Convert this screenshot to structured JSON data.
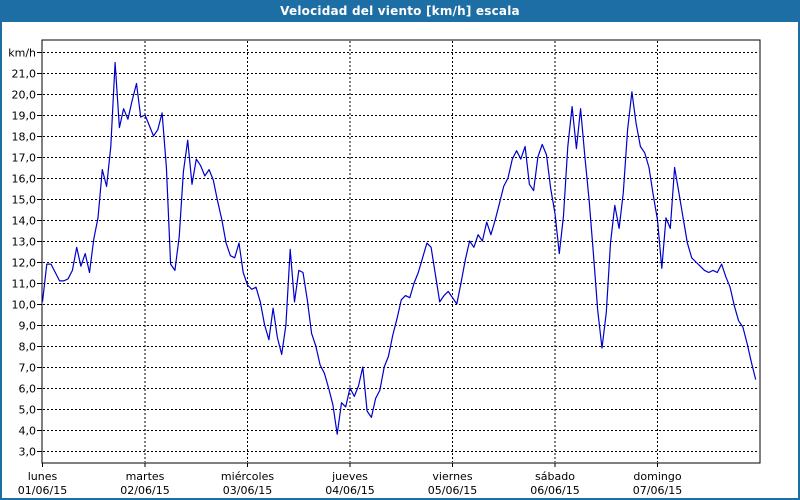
{
  "window": {
    "title": "Velocidad del viento [km/h] escala"
  },
  "colors": {
    "titlebar_bg": "#1c6ea4",
    "window_border": "#1c6ea4",
    "line": "#0000cc",
    "grid": "#000000",
    "plot_background": "#ffffff",
    "label_text": "#000000"
  },
  "chart_data": {
    "type": "line",
    "title": "Velocidad del viento [km/h] escala",
    "unit_label": "km/h",
    "grid": "dashed",
    "legend": "none",
    "y_axis": {
      "min": 3,
      "max": 22,
      "step": 1,
      "tick_labels_top_to_bottom": [
        "km/h",
        "21,0",
        "20,0",
        "19,0",
        "18,0",
        "17,0",
        "16,0",
        "15,0",
        "14,0",
        "13,0",
        "12,0",
        "11,0",
        "10,0",
        "9,0",
        "8,0",
        "7,0",
        "6,0",
        "5,0",
        "4,0",
        "3,0"
      ]
    },
    "x_axis": {
      "categories": [
        {
          "day": "lunes",
          "date": "01/06/15"
        },
        {
          "day": "martes",
          "date": "02/06/15"
        },
        {
          "day": "miércoles",
          "date": "03/06/15"
        },
        {
          "day": "jueves",
          "date": "04/06/15"
        },
        {
          "day": "viernes",
          "date": "05/06/15"
        },
        {
          "day": "sábado",
          "date": "06/06/15"
        },
        {
          "day": "domingo",
          "date": "07/06/15"
        }
      ],
      "points_per_day": 24
    },
    "series": [
      {
        "name": "Velocidad del viento [km/h]",
        "color": "#0000cc",
        "values": [
          10.1,
          11.9,
          11.9,
          11.5,
          11.1,
          11.1,
          11.2,
          11.6,
          12.7,
          11.8,
          12.4,
          11.5,
          13.1,
          14.1,
          16.4,
          15.6,
          17.5,
          21.5,
          18.4,
          19.3,
          18.8,
          19.7,
          20.5,
          18.9,
          19.0,
          18.5,
          18.0,
          18.3,
          19.1,
          16.5,
          11.9,
          11.6,
          13.2,
          16.3,
          17.8,
          15.7,
          16.9,
          16.6,
          16.1,
          16.4,
          15.9,
          14.9,
          14.0,
          12.9,
          12.3,
          12.2,
          12.9,
          11.5,
          10.9,
          10.7,
          10.8,
          10.1,
          9.0,
          8.3,
          9.8,
          8.4,
          7.6,
          9.0,
          12.6,
          10.1,
          11.6,
          11.5,
          10.2,
          8.6,
          8.0,
          7.1,
          6.7,
          6.0,
          5.2,
          3.8,
          5.3,
          5.1,
          6.0,
          5.6,
          6.1,
          7.0,
          4.9,
          4.6,
          5.5,
          5.9,
          7.0,
          7.5,
          8.5,
          9.3,
          10.2,
          10.4,
          10.3,
          11.0,
          11.5,
          12.2,
          12.9,
          12.7,
          11.4,
          10.1,
          10.4,
          10.6,
          10.3,
          10.0,
          11.0,
          12.1,
          13.0,
          12.7,
          13.3,
          13.0,
          13.9,
          13.3,
          14.0,
          14.8,
          15.6,
          16.0,
          16.9,
          17.3,
          16.9,
          17.5,
          15.7,
          15.4,
          17.0,
          17.6,
          17.1,
          15.5,
          14.3,
          12.4,
          14.2,
          17.5,
          19.4,
          17.4,
          19.3,
          17.0,
          14.9,
          12.4,
          9.7,
          7.9,
          9.6,
          12.9,
          14.7,
          13.6,
          15.3,
          18.3,
          20.1,
          18.6,
          17.5,
          17.2,
          16.5,
          15.2,
          14.0,
          11.7,
          14.1,
          13.6,
          16.5,
          15.3,
          14.1,
          12.9,
          12.2,
          12.0,
          11.8,
          11.6,
          11.5,
          11.6,
          11.5,
          11.9,
          11.3,
          10.8,
          9.9,
          9.2,
          8.9,
          8.1,
          7.2,
          6.4
        ]
      }
    ]
  }
}
